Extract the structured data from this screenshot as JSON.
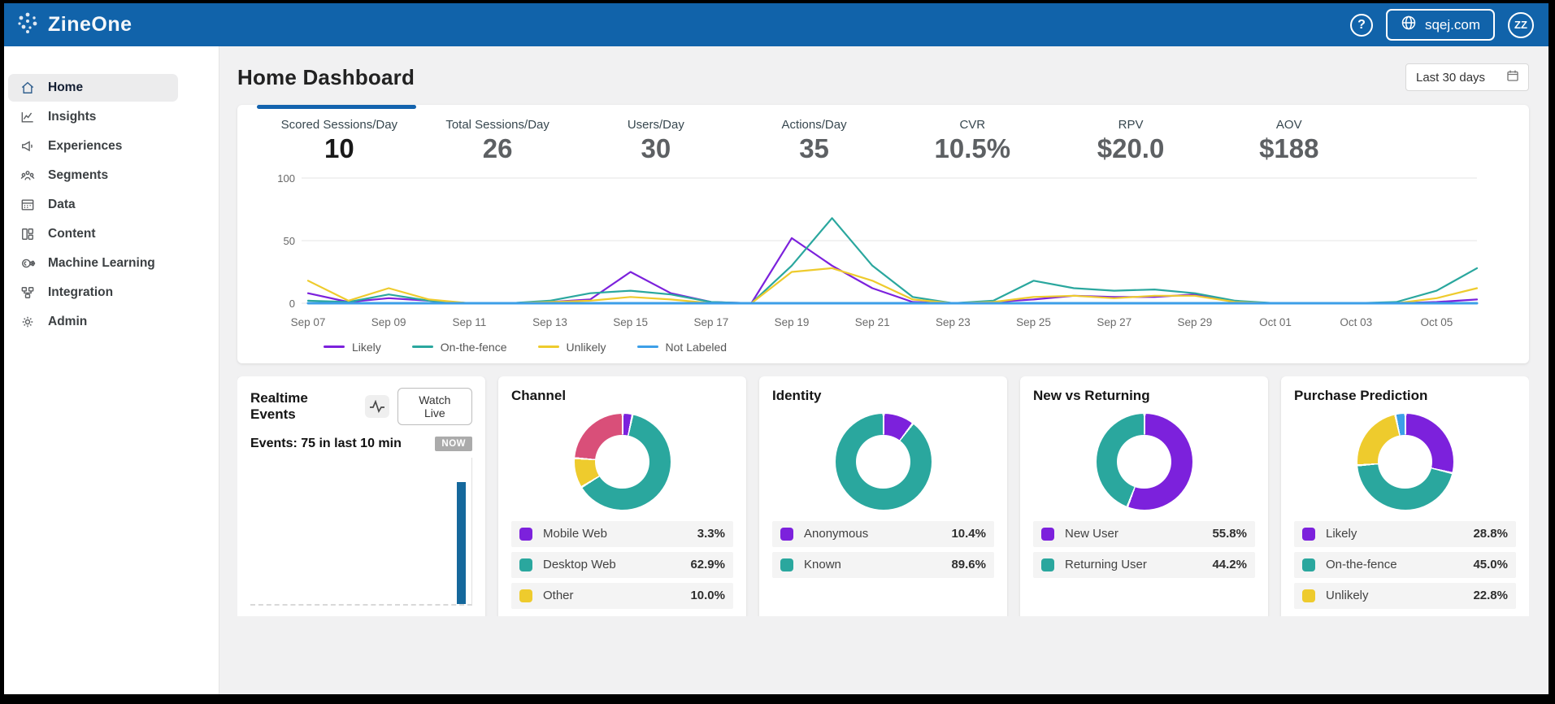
{
  "colors": {
    "header_blue": "#1163aa",
    "accent_blue": "#1363ae",
    "likely_purple": "#7c21dc",
    "on_the_fence_teal": "#2aa79e",
    "unlikely_yellow": "#eecb2d",
    "not_labeled_blue": "#3d9fe8",
    "channel_pink": "#d94f79",
    "realtime_bar_blue": "#15689c"
  },
  "header": {
    "brand": "ZineOne",
    "help": "?",
    "domain": "sqej.com",
    "avatar_initials": "ZZ"
  },
  "sidebar": {
    "items": [
      {
        "label": "Home",
        "icon": "home-icon",
        "active": true
      },
      {
        "label": "Insights",
        "icon": "insights-icon",
        "active": false
      },
      {
        "label": "Experiences",
        "icon": "experiences-icon",
        "active": false
      },
      {
        "label": "Segments",
        "icon": "segments-icon",
        "active": false
      },
      {
        "label": "Data",
        "icon": "data-icon",
        "active": false
      },
      {
        "label": "Content",
        "icon": "content-icon",
        "active": false
      },
      {
        "label": "Machine Learning",
        "icon": "machine-learning-icon",
        "active": false
      },
      {
        "label": "Integration",
        "icon": "integration-icon",
        "active": false
      },
      {
        "label": "Admin",
        "icon": "admin-icon",
        "active": false
      }
    ]
  },
  "page": {
    "title": "Home Dashboard",
    "date_range": "Last 30 days"
  },
  "stats": [
    {
      "label": "Scored Sessions/Day",
      "value": "10",
      "active": true
    },
    {
      "label": "Total Sessions/Day",
      "value": "26",
      "active": false
    },
    {
      "label": "Users/Day",
      "value": "30",
      "active": false
    },
    {
      "label": "Actions/Day",
      "value": "35",
      "active": false
    },
    {
      "label": "CVR",
      "value": "10.5%",
      "active": false
    },
    {
      "label": "RPV",
      "value": "$20.0",
      "active": false
    },
    {
      "label": "AOV",
      "value": "$188",
      "active": false
    }
  ],
  "chart_data": [
    {
      "type": "line",
      "title": "",
      "ylim": [
        0,
        100
      ],
      "yticks": [
        0,
        50,
        100
      ],
      "grid": true,
      "legend_position": "bottom",
      "x": [
        "Sep 07",
        "Sep 08",
        "Sep 09",
        "Sep 10",
        "Sep 11",
        "Sep 12",
        "Sep 13",
        "Sep 14",
        "Sep 15",
        "Sep 16",
        "Sep 17",
        "Sep 18",
        "Sep 19",
        "Sep 20",
        "Sep 21",
        "Sep 22",
        "Sep 23",
        "Sep 24",
        "Sep 25",
        "Sep 26",
        "Sep 27",
        "Sep 28",
        "Sep 29",
        "Sep 30",
        "Oct 01",
        "Oct 02",
        "Oct 03",
        "Oct 04",
        "Oct 05",
        "Oct 06"
      ],
      "x_tick_labels": [
        "Sep 07",
        "Sep 09",
        "Sep 11",
        "Sep 13",
        "Sep 15",
        "Sep 17",
        "Sep 19",
        "Sep 21",
        "Sep 23",
        "Sep 25",
        "Sep 27",
        "Sep 29",
        "Oct 01",
        "Oct 03",
        "Oct 05"
      ],
      "series": [
        {
          "name": "Likely",
          "color": "#7c21dc",
          "values": [
            8,
            1,
            4,
            2,
            0,
            0,
            1,
            3,
            25,
            8,
            1,
            0,
            52,
            30,
            12,
            1,
            0,
            1,
            3,
            6,
            5,
            5,
            7,
            1,
            0,
            0,
            0,
            0,
            1,
            3
          ]
        },
        {
          "name": "On-the-fence",
          "color": "#2aa79e",
          "values": [
            2,
            1,
            7,
            2,
            0,
            0,
            2,
            8,
            10,
            7,
            1,
            0,
            30,
            68,
            30,
            5,
            0,
            2,
            18,
            12,
            10,
            11,
            8,
            2,
            0,
            0,
            0,
            1,
            10,
            28
          ]
        },
        {
          "name": "Unlikely",
          "color": "#eecb2d",
          "values": [
            18,
            2,
            12,
            3,
            0,
            0,
            1,
            2,
            5,
            3,
            0,
            0,
            25,
            28,
            18,
            3,
            0,
            1,
            5,
            6,
            4,
            6,
            6,
            1,
            0,
            0,
            0,
            0,
            4,
            12
          ]
        },
        {
          "name": "Not Labeled",
          "color": "#3d9fe8",
          "values": [
            0,
            0,
            0,
            0,
            0,
            0,
            0,
            0,
            0,
            0,
            0,
            0,
            0,
            0,
            0,
            0,
            0,
            0,
            0,
            0,
            0,
            0,
            0,
            0,
            0,
            0,
            0,
            0,
            0,
            0
          ]
        }
      ]
    },
    {
      "type": "bar",
      "title": "Realtime Events",
      "button_label": "Watch Live",
      "events_text": "Events: 75 in last 10 min",
      "now_label": "NOW",
      "current_events": 75
    },
    {
      "type": "pie",
      "title": "Channel",
      "slices": [
        {
          "label": "Mobile Web",
          "value": 3.3,
          "color": "#7c21dc"
        },
        {
          "label": "Desktop Web",
          "value": 62.9,
          "color": "#2aa79e"
        },
        {
          "label": "Other",
          "value": 10.0,
          "color": "#eecb2d"
        },
        {
          "label": "",
          "value": 23.8,
          "color": "#d94f79"
        }
      ]
    },
    {
      "type": "pie",
      "title": "Identity",
      "slices": [
        {
          "label": "Anonymous",
          "value": 10.4,
          "color": "#7c21dc"
        },
        {
          "label": "Known",
          "value": 89.6,
          "color": "#2aa79e"
        }
      ]
    },
    {
      "type": "pie",
      "title": "New vs Returning",
      "slices": [
        {
          "label": "New User",
          "value": 55.8,
          "color": "#7c21dc"
        },
        {
          "label": "Returning User",
          "value": 44.2,
          "color": "#2aa79e"
        }
      ]
    },
    {
      "type": "pie",
      "title": "Purchase Prediction",
      "slices": [
        {
          "label": "Likely",
          "value": 28.8,
          "color": "#7c21dc"
        },
        {
          "label": "On-the-fence",
          "value": 45.0,
          "color": "#2aa79e"
        },
        {
          "label": "Unlikely",
          "value": 22.8,
          "color": "#eecb2d"
        },
        {
          "label": "",
          "value": 3.4,
          "color": "#3d9fe8"
        }
      ]
    }
  ]
}
